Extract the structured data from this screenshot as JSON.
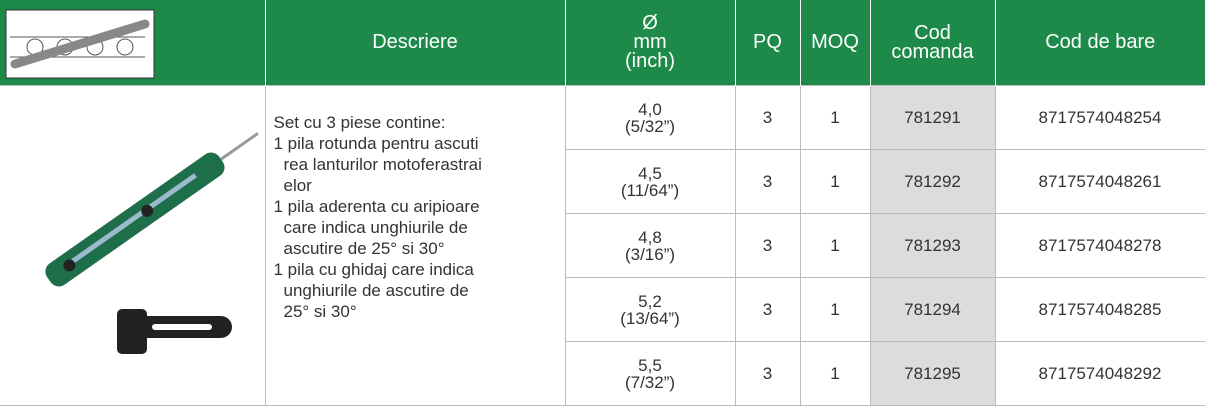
{
  "header": {
    "columns": [
      "Descriere",
      [
        "Ø",
        "mm",
        "(inch)"
      ],
      "PQ",
      "MOQ",
      [
        "Cod",
        "comanda"
      ],
      "Cod de bare"
    ]
  },
  "description": {
    "intro": "Set cu 3 piese contine:",
    "items": [
      [
        "1 pila rotunda  pentru ascuti",
        "rea lanturilor motoferastrai",
        "elor"
      ],
      [
        "1 pila aderenta cu aripioare",
        "care indica unghiurile de",
        "ascutire de 25° si 30°"
      ],
      [
        "1 pila cu ghidaj care indica",
        "unghiurile de ascutire de",
        "25° si 30°"
      ]
    ]
  },
  "rows": [
    [
      [
        "4,0",
        "(5/32”)"
      ],
      "3",
      "1",
      "781291",
      "8717574048254"
    ],
    [
      [
        "4,5",
        "(11/64”)"
      ],
      "3",
      "1",
      "781292",
      "8717574048261"
    ],
    [
      [
        "4,8",
        "(3/16”)"
      ],
      "3",
      "1",
      "781293",
      "8717574048278"
    ],
    [
      [
        "5,2",
        "(13/64”)"
      ],
      "3",
      "1",
      "781294",
      "8717574048285"
    ],
    [
      [
        "5,5",
        "(7/32”)"
      ],
      "3",
      "1",
      "781295",
      "8717574048292"
    ]
  ]
}
